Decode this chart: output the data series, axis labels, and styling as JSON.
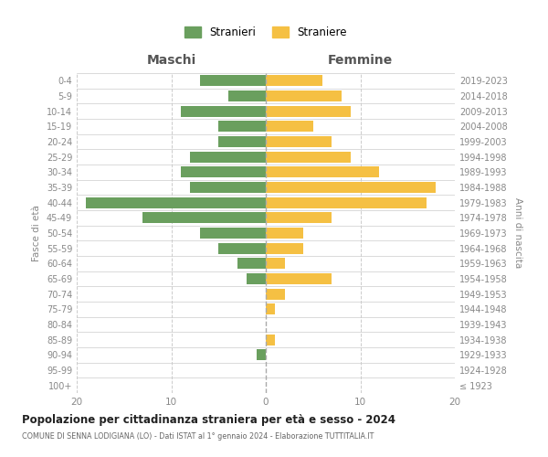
{
  "age_groups": [
    "100+",
    "95-99",
    "90-94",
    "85-89",
    "80-84",
    "75-79",
    "70-74",
    "65-69",
    "60-64",
    "55-59",
    "50-54",
    "45-49",
    "40-44",
    "35-39",
    "30-34",
    "25-29",
    "20-24",
    "15-19",
    "10-14",
    "5-9",
    "0-4"
  ],
  "birth_years": [
    "≤ 1923",
    "1924-1928",
    "1929-1933",
    "1934-1938",
    "1939-1943",
    "1944-1948",
    "1949-1953",
    "1954-1958",
    "1959-1963",
    "1964-1968",
    "1969-1973",
    "1974-1978",
    "1979-1983",
    "1984-1988",
    "1989-1993",
    "1994-1998",
    "1999-2003",
    "2004-2008",
    "2009-2013",
    "2014-2018",
    "2019-2023"
  ],
  "maschi": [
    0,
    0,
    1,
    0,
    0,
    0,
    0,
    2,
    3,
    5,
    7,
    13,
    19,
    8,
    9,
    8,
    5,
    5,
    9,
    4,
    7
  ],
  "femmine": [
    0,
    0,
    0,
    1,
    0,
    1,
    2,
    7,
    2,
    4,
    4,
    7,
    17,
    18,
    12,
    9,
    7,
    5,
    9,
    8,
    6
  ],
  "color_maschi": "#6a9f5e",
  "color_femmine": "#f5c043",
  "title": "Popolazione per cittadinanza straniera per età e sesso - 2024",
  "subtitle": "COMUNE DI SENNA LODIGIANA (LO) - Dati ISTAT al 1° gennaio 2024 - Elaborazione TUTTITALIA.IT",
  "xlabel_left": "Maschi",
  "xlabel_right": "Femmine",
  "ylabel_left": "Fasce di età",
  "ylabel_right": "Anni di nascita",
  "legend_maschi": "Stranieri",
  "legend_femmine": "Straniere",
  "xlim": 20,
  "background_color": "#ffffff",
  "grid_color": "#cccccc"
}
